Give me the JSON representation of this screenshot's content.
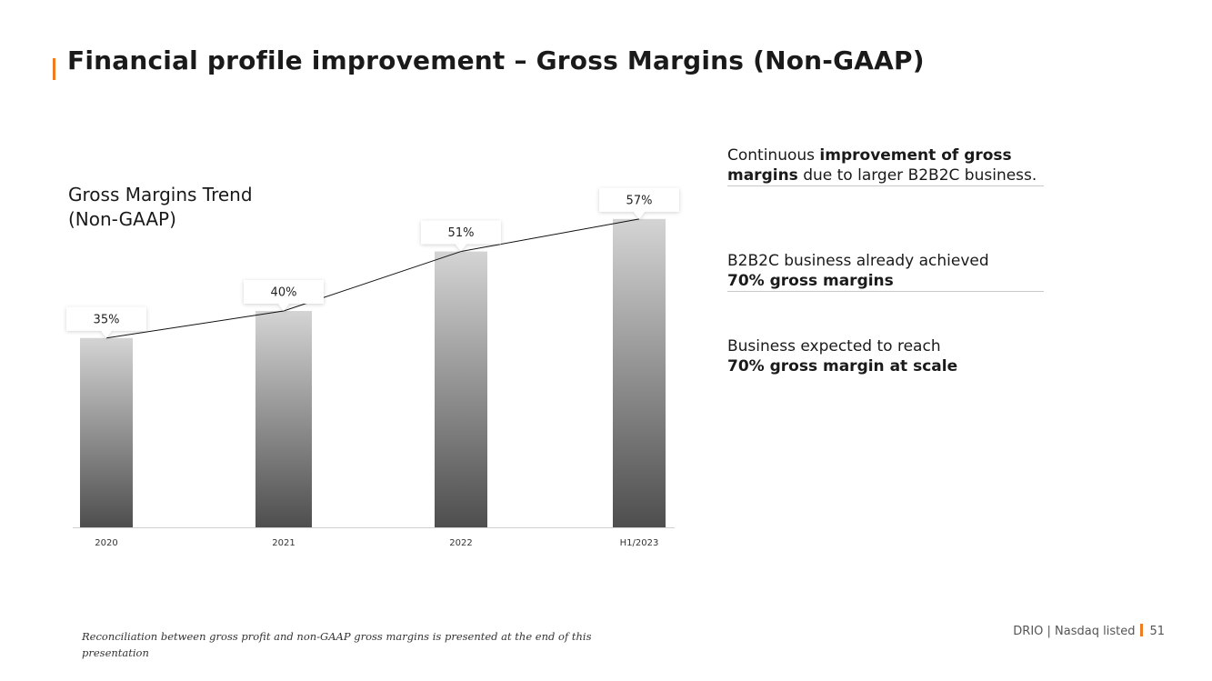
{
  "title": "Financial profile improvement – Gross Margins (Non-GAAP)",
  "chart_data": {
    "type": "bar",
    "title": "Gross Margins Trend (Non-GAAP)",
    "title_lines": [
      "Gross Margins Trend",
      "(Non-GAAP)"
    ],
    "categories": [
      "2020",
      "2021",
      "2022",
      "H1/2023"
    ],
    "values": [
      35,
      40,
      51,
      57
    ],
    "data_labels": [
      "35%",
      "40%",
      "51%",
      "57%"
    ],
    "unit": "%",
    "trend_line": true,
    "ylim": [
      0,
      70
    ],
    "xlabel": "",
    "ylabel": "",
    "grid": false,
    "legend": "none"
  },
  "bullets": [
    {
      "parts": [
        {
          "text": "Continuous ",
          "bold": false
        },
        {
          "text": "improvement of gross margins",
          "bold": true
        },
        {
          "text": " due to larger B2B2C business.",
          "bold": false
        }
      ]
    },
    {
      "parts": [
        {
          "text": "B2B2C business already achieved ",
          "bold": false
        },
        {
          "text": "70% gross margins",
          "bold": true
        }
      ]
    },
    {
      "parts": [
        {
          "text": "Business expected to reach ",
          "bold": false
        },
        {
          "text": "70% gross margin at scale",
          "bold": true
        }
      ]
    }
  ],
  "footnote": "Reconciliation between gross profit and non-GAAP gross margins is presented at the end of this presentation",
  "footer": {
    "company": "DRIO | Nasdaq listed",
    "page": "51"
  },
  "colors": {
    "accent": "#ee7d22",
    "bar_top": "#d4d4d4",
    "bar_bottom": "#4e4e4e",
    "text": "#1a1a1a"
  }
}
